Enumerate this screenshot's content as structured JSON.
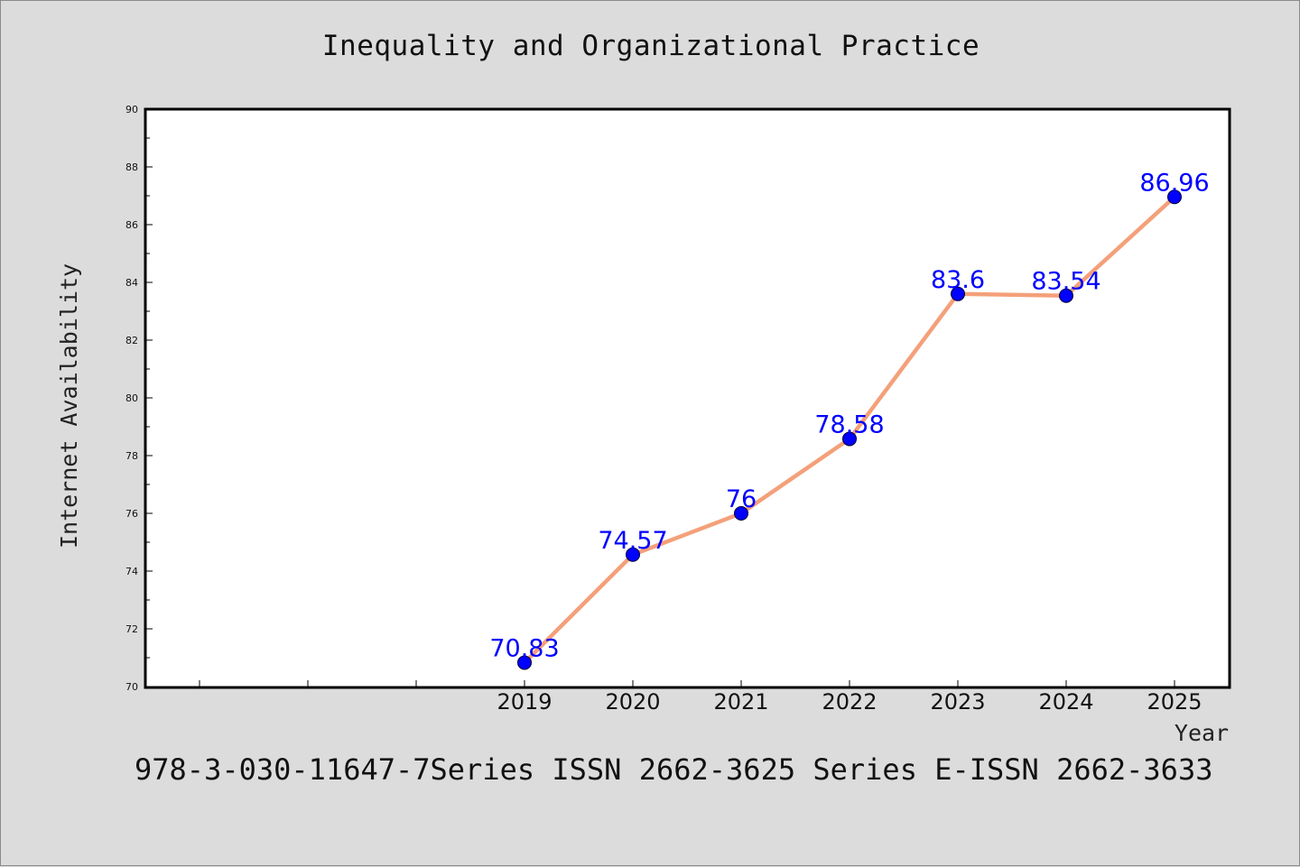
{
  "title": "Inequality and Organizational Practice",
  "footer": "978-3-030-11647-7Series ISSN 2662-3625 Series E-ISSN 2662-3633",
  "colors": {
    "background": "#dcdcdc",
    "plot_background": "#ffffff",
    "line": "#f4a07a",
    "marker": "#0000ff",
    "label": "#0000ff"
  },
  "chart_data": {
    "type": "line",
    "title": "Inequality and Organizational Practice",
    "xlabel": "Year",
    "ylabel": "Internet Availability",
    "x": [
      "2019",
      "2020",
      "2021",
      "2022",
      "2023",
      "2024",
      "2025"
    ],
    "y": [
      70.83,
      74.57,
      76,
      78.58,
      83.6,
      83.54,
      86.96
    ],
    "data_labels": [
      "70.83",
      "74.57",
      "76",
      "78.58",
      "83.6",
      "83.54",
      "86.96"
    ],
    "y_ticks": [
      "70",
      "72",
      "74",
      "76",
      "78",
      "80",
      "82",
      "84",
      "86",
      "88",
      "90"
    ],
    "ylim": [
      70,
      90
    ],
    "grid": false,
    "legend": "none"
  }
}
